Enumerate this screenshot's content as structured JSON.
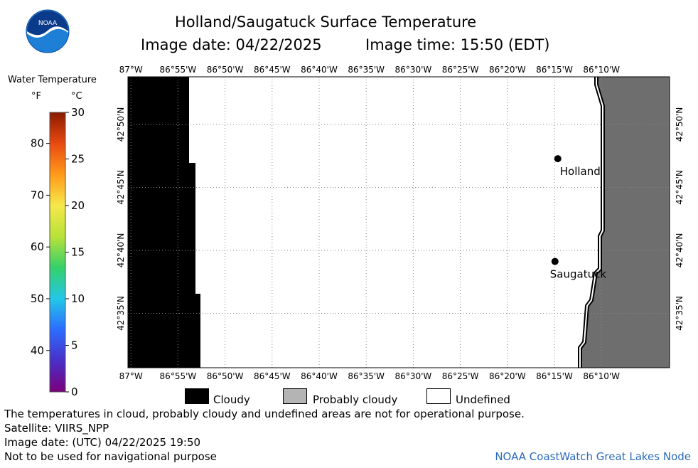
{
  "header": {
    "title": "Holland/Saugatuck Surface Temperature",
    "image_date": "Image date: 04/22/2025",
    "image_time": "Image time: 15:50 (EDT)",
    "logo_text": "NOAA"
  },
  "colorbar": {
    "title": "Water Temperature",
    "unit_f": "°F",
    "unit_c": "°C",
    "f_ticks": [
      "80",
      "70",
      "60",
      "50",
      "40"
    ],
    "c_ticks": [
      "30",
      "25",
      "20",
      "15",
      "10",
      "5",
      "0"
    ],
    "range_c": [
      0,
      30
    ],
    "colors": [
      "#7a007a",
      "#4a2fc8",
      "#2c6cff",
      "#22c8e8",
      "#35d06a",
      "#b8e23a",
      "#f6e84a",
      "#ff9a1a",
      "#e84a10",
      "#8a1a00"
    ]
  },
  "map": {
    "lon_ticks": [
      "87°W",
      "86°55'W",
      "86°50'W",
      "86°45'W",
      "86°40'W",
      "86°35'W",
      "86°30'W",
      "86°25'W",
      "86°20'W",
      "86°15'W",
      "86°10'W"
    ],
    "lat_ticks": [
      "42°50'N",
      "42°45'N",
      "42°40'N",
      "42°35'N"
    ],
    "places": [
      {
        "name": "Holland",
        "lat": 42.788,
        "lon": -86.244
      },
      {
        "name": "Saugatuck",
        "lat": 42.652,
        "lon": -86.249
      }
    ],
    "colors": {
      "cloudy": "#000000",
      "land": "#6e6e6e",
      "grid": "#888888",
      "undefined": "#ffffff"
    }
  },
  "legend": {
    "cloudy": "Cloudy",
    "probably_cloudy": "Probably cloudy",
    "undefined": "Undefined",
    "probably_cloudy_color": "#b4b4b4"
  },
  "footer": {
    "note": "The temperatures in cloud, probably cloudy and undefined areas are not for operational purpose.",
    "satellite": "Satellite: VIIRS_NPP",
    "utc_date": "Image date: (UTC) 04/22/2025  19:50",
    "nav_warning": "Not to be used for navigational purpose",
    "credit": "NOAA CoastWatch Great Lakes Node",
    "credit_color": "#2a6ab8"
  }
}
